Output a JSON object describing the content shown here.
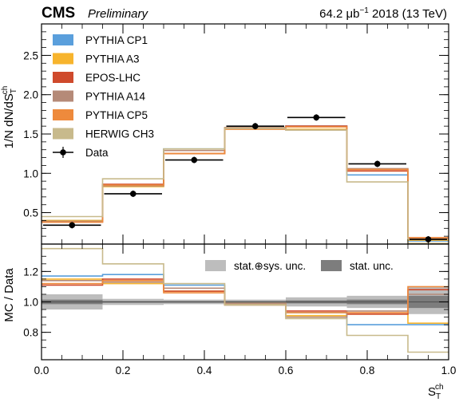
{
  "header": {
    "experiment": "CMS",
    "status": "Preliminary",
    "lumi_value": "64.2 μb",
    "lumi_exp": "−1",
    "lumi_rest": " 2018 (13 TeV)"
  },
  "colors": {
    "PYTHIA CP1": "#5a9fdc",
    "PYTHIA A3": "#f7b42d",
    "EPOS-LHC": "#cf4a2c",
    "PYTHIA A14": "#b58a78",
    "PYTHIA CP5": "#ee8a3c",
    "HERWIG CH3": "#c8ba8c",
    "Data": "#000000"
  },
  "chart_data": [
    {
      "type": "line",
      "panel": "main",
      "x_bin_edges": [
        0.0,
        0.15,
        0.3,
        0.45,
        0.6,
        0.75,
        0.9,
        1.0
      ],
      "ylabel_main": "1/N dN/dS",
      "ylabel_sup": "ch",
      "ylabel_sub": "T",
      "ylim": [
        0.1,
        2.9
      ],
      "yticks": [
        0.5,
        1.0,
        1.5,
        2.0,
        2.5
      ],
      "ytick_labels": [
        "0.5",
        "1.0",
        "1.5",
        "2.0",
        "2.5"
      ],
      "legend_position": "top-left",
      "series": [
        {
          "name": "PYTHIA CP1",
          "style": "fill",
          "values": [
            0.4,
            0.85,
            1.31,
            1.57,
            1.6,
            0.98,
            0.14
          ]
        },
        {
          "name": "PYTHIA A3",
          "style": "fill",
          "values": [
            0.4,
            0.83,
            1.25,
            1.58,
            1.56,
            1.03,
            0.15
          ]
        },
        {
          "name": "EPOS-LHC",
          "style": "fill",
          "values": [
            0.38,
            0.86,
            1.25,
            1.57,
            1.6,
            1.03,
            0.18
          ]
        },
        {
          "name": "PYTHIA A14",
          "style": "fill",
          "values": [
            0.39,
            0.84,
            1.29,
            1.58,
            1.55,
            1.06,
            0.17
          ]
        },
        {
          "name": "PYTHIA CP5",
          "style": "fill",
          "values": [
            0.38,
            0.85,
            1.25,
            1.56,
            1.59,
            1.05,
            0.18
          ]
        },
        {
          "name": "HERWIG CH3",
          "style": "fill",
          "values": [
            0.45,
            0.93,
            1.31,
            1.57,
            1.55,
            0.89,
            0.11
          ]
        },
        {
          "name": "Data",
          "style": "marker",
          "x": [
            0.075,
            0.225,
            0.375,
            0.525,
            0.675,
            0.825,
            0.95
          ],
          "values": [
            0.34,
            0.74,
            1.17,
            1.6,
            1.71,
            1.12,
            0.16
          ]
        }
      ]
    },
    {
      "type": "line",
      "panel": "ratio",
      "x_bin_edges": [
        0.0,
        0.15,
        0.3,
        0.45,
        0.6,
        0.75,
        0.9,
        1.0
      ],
      "xlabel_main": "S",
      "xlabel_sup": "ch",
      "xlabel_sub": "T",
      "ylabel": "MC / Data",
      "xlim": [
        0.0,
        1.0
      ],
      "xticks": [
        0.0,
        0.2,
        0.4,
        0.6,
        0.8,
        1.0
      ],
      "xtick_labels": [
        "0.0",
        "0.2",
        "0.4",
        "0.6",
        "0.8",
        "1.0"
      ],
      "ylim": [
        0.62,
        1.38
      ],
      "yticks": [
        0.8,
        1.0,
        1.2
      ],
      "ytick_labels": [
        "0.8",
        "1.0",
        "1.2"
      ],
      "legend_position": "top-right",
      "band_labels": {
        "stat_sys": "stat.⊕sys. unc.",
        "stat": "stat. unc."
      },
      "band_stat_sys": [
        [
          0.95,
          1.05
        ],
        [
          0.98,
          1.02
        ],
        [
          0.985,
          1.015
        ],
        [
          0.985,
          1.015
        ],
        [
          0.97,
          1.03
        ],
        [
          0.96,
          1.04
        ],
        [
          0.92,
          1.1
        ]
      ],
      "band_stat": [
        [
          0.985,
          1.015
        ],
        [
          0.995,
          1.005
        ],
        [
          0.995,
          1.005
        ],
        [
          0.995,
          1.005
        ],
        [
          0.99,
          1.01
        ],
        [
          0.985,
          1.015
        ],
        [
          0.96,
          1.04
        ]
      ],
      "series": [
        {
          "name": "PYTHIA CP1",
          "values": [
            1.17,
            1.18,
            1.11,
            0.98,
            0.93,
            0.85,
            0.85
          ]
        },
        {
          "name": "PYTHIA A3",
          "values": [
            1.15,
            1.12,
            1.07,
            0.99,
            0.91,
            0.92,
            0.86
          ]
        },
        {
          "name": "EPOS-LHC",
          "values": [
            1.11,
            1.15,
            1.07,
            0.98,
            0.94,
            0.92,
            1.08
          ]
        },
        {
          "name": "PYTHIA A14",
          "values": [
            1.14,
            1.13,
            1.09,
            0.99,
            0.9,
            0.94,
            1.05
          ]
        },
        {
          "name": "PYTHIA CP5",
          "values": [
            1.12,
            1.14,
            1.06,
            0.98,
            0.93,
            0.93,
            1.1
          ]
        },
        {
          "name": "HERWIG CH3",
          "values": [
            1.35,
            1.25,
            1.12,
            0.98,
            0.89,
            0.78,
            0.67
          ]
        }
      ]
    }
  ]
}
